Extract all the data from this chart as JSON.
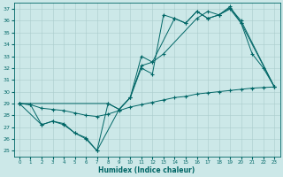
{
  "xlabel": "Humidex (Indice chaleur)",
  "xlim": [
    -0.5,
    23.5
  ],
  "ylim": [
    24.5,
    37.5
  ],
  "yticks": [
    25,
    26,
    27,
    28,
    29,
    30,
    31,
    32,
    33,
    34,
    35,
    36,
    37
  ],
  "xticks": [
    0,
    1,
    2,
    3,
    4,
    5,
    6,
    7,
    8,
    9,
    10,
    11,
    12,
    13,
    14,
    15,
    16,
    17,
    18,
    19,
    20,
    21,
    22,
    23
  ],
  "bg_color": "#cce8e8",
  "grid_color": "#aacccc",
  "line_color": "#006666",
  "lines": [
    {
      "x": [
        0,
        2,
        3,
        4,
        5,
        6,
        7,
        9,
        10,
        11,
        12,
        14,
        15,
        16,
        17,
        18,
        19,
        20,
        23
      ],
      "y": [
        29,
        27.2,
        27.5,
        27.3,
        26.5,
        26.1,
        25.0,
        28.5,
        29.5,
        32.2,
        32.5,
        36.2,
        35.8,
        36.8,
        36.2,
        36.5,
        37.1,
        36.0,
        30.4
      ]
    },
    {
      "x": [
        0,
        1,
        2,
        3,
        4,
        5,
        6,
        7,
        8,
        9,
        10,
        11,
        12,
        13,
        14,
        15,
        16,
        17,
        18,
        19,
        20,
        23
      ],
      "y": [
        29,
        28.9,
        27.2,
        27.5,
        27.2,
        26.5,
        26.0,
        25.0,
        29.0,
        28.5,
        29.5,
        32.0,
        31.5,
        36.5,
        36.2,
        35.8,
        36.8,
        36.2,
        36.5,
        37.0,
        35.8,
        30.4
      ]
    },
    {
      "x": [
        0,
        8,
        9,
        10,
        11,
        12,
        13,
        16,
        17,
        18,
        19,
        20,
        21,
        22,
        23
      ],
      "y": [
        29,
        29.0,
        28.5,
        29.5,
        33.0,
        32.5,
        33.2,
        36.2,
        36.8,
        36.5,
        37.2,
        35.8,
        33.2,
        32.0,
        30.4
      ]
    },
    {
      "x": [
        0,
        1,
        2,
        3,
        4,
        5,
        6,
        7,
        8,
        9,
        10,
        11,
        12,
        13,
        14,
        15,
        16,
        17,
        18,
        19,
        20,
        21,
        22,
        23
      ],
      "y": [
        29.0,
        28.9,
        28.6,
        28.5,
        28.4,
        28.2,
        28.0,
        27.9,
        28.1,
        28.4,
        28.7,
        28.9,
        29.1,
        29.3,
        29.5,
        29.6,
        29.8,
        29.9,
        30.0,
        30.1,
        30.2,
        30.3,
        30.35,
        30.4
      ]
    }
  ]
}
